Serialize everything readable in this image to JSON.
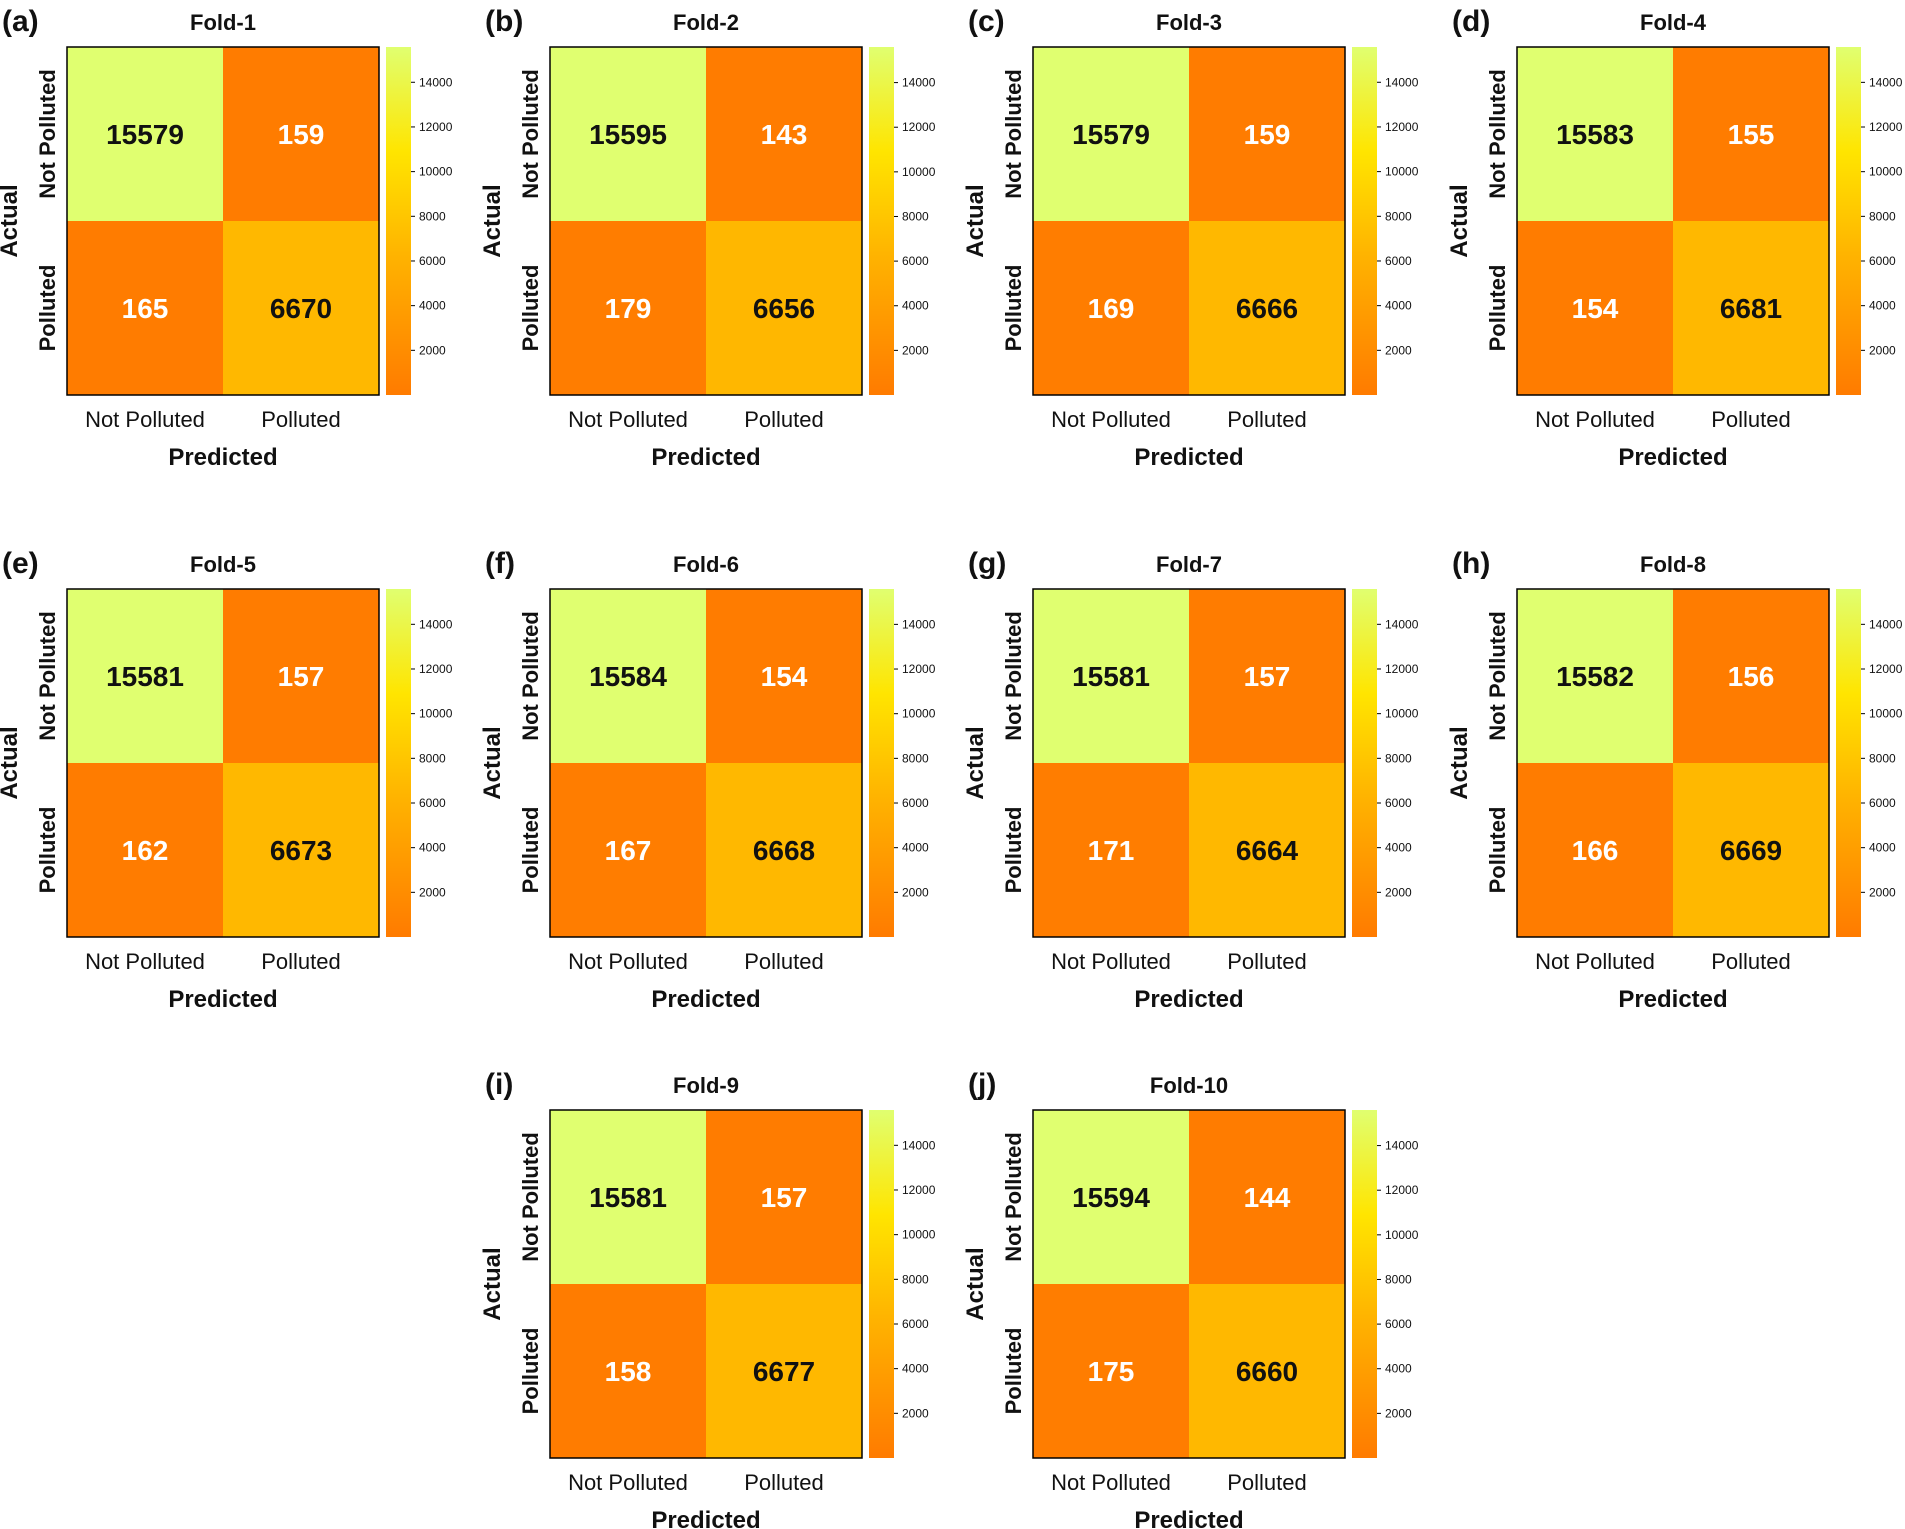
{
  "figure": {
    "row_label": "Actual",
    "col_label": "Predicted",
    "class_labels": [
      "Not Polluted",
      "Polluted"
    ],
    "colormap": {
      "stops": [
        "#ff7b00",
        "#ffb300",
        "#ffe500",
        "#e0ff70"
      ],
      "text_dark": "#111111",
      "text_light": "#ffffff"
    }
  },
  "chart_data": [
    {
      "type": "heatmap",
      "panel_label": "(a)",
      "title": "Fold-1",
      "xlabel": "Predicted",
      "ylabel": "Actual",
      "x_categories": [
        "Not Polluted",
        "Polluted"
      ],
      "y_categories": [
        "Not Polluted",
        "Polluted"
      ],
      "values": [
        [
          15579,
          159
        ],
        [
          165,
          6670
        ]
      ],
      "colorbar": {
        "ticks": [
          2000,
          4000,
          6000,
          8000,
          10000,
          12000,
          14000
        ],
        "range": [
          0,
          15579
        ]
      }
    },
    {
      "type": "heatmap",
      "panel_label": "(b)",
      "title": "Fold-2",
      "xlabel": "Predicted",
      "ylabel": "Actual",
      "x_categories": [
        "Not Polluted",
        "Polluted"
      ],
      "y_categories": [
        "Not Polluted",
        "Polluted"
      ],
      "values": [
        [
          15595,
          143
        ],
        [
          179,
          6656
        ]
      ],
      "colorbar": {
        "ticks": [
          2000,
          4000,
          6000,
          8000,
          10000,
          12000,
          14000
        ],
        "range": [
          0,
          15595
        ]
      }
    },
    {
      "type": "heatmap",
      "panel_label": "(c)",
      "title": "Fold-3",
      "xlabel": "Predicted",
      "ylabel": "Actual",
      "x_categories": [
        "Not Polluted",
        "Polluted"
      ],
      "y_categories": [
        "Not Polluted",
        "Polluted"
      ],
      "values": [
        [
          15579,
          159
        ],
        [
          169,
          6666
        ]
      ],
      "colorbar": {
        "ticks": [
          2000,
          4000,
          6000,
          8000,
          10000,
          12000,
          14000
        ],
        "range": [
          0,
          15579
        ]
      }
    },
    {
      "type": "heatmap",
      "panel_label": "(d)",
      "title": "Fold-4",
      "xlabel": "Predicted",
      "ylabel": "Actual",
      "x_categories": [
        "Not Polluted",
        "Polluted"
      ],
      "y_categories": [
        "Not Polluted",
        "Polluted"
      ],
      "values": [
        [
          15583,
          155
        ],
        [
          154,
          6681
        ]
      ],
      "colorbar": {
        "ticks": [
          2000,
          4000,
          6000,
          8000,
          10000,
          12000,
          14000
        ],
        "range": [
          0,
          15583
        ]
      }
    },
    {
      "type": "heatmap",
      "panel_label": "(e)",
      "title": "Fold-5",
      "xlabel": "Predicted",
      "ylabel": "Actual",
      "x_categories": [
        "Not Polluted",
        "Polluted"
      ],
      "y_categories": [
        "Not Polluted",
        "Polluted"
      ],
      "values": [
        [
          15581,
          157
        ],
        [
          162,
          6673
        ]
      ],
      "colorbar": {
        "ticks": [
          2000,
          4000,
          6000,
          8000,
          10000,
          12000,
          14000
        ],
        "range": [
          0,
          15581
        ]
      }
    },
    {
      "type": "heatmap",
      "panel_label": "(f)",
      "title": "Fold-6",
      "xlabel": "Predicted",
      "ylabel": "Actual",
      "x_categories": [
        "Not Polluted",
        "Polluted"
      ],
      "y_categories": [
        "Not Polluted",
        "Polluted"
      ],
      "values": [
        [
          15584,
          154
        ],
        [
          167,
          6668
        ]
      ],
      "colorbar": {
        "ticks": [
          2000,
          4000,
          6000,
          8000,
          10000,
          12000,
          14000
        ],
        "range": [
          0,
          15584
        ]
      }
    },
    {
      "type": "heatmap",
      "panel_label": "(g)",
      "title": "Fold-7",
      "xlabel": "Predicted",
      "ylabel": "Actual",
      "x_categories": [
        "Not Polluted",
        "Polluted"
      ],
      "y_categories": [
        "Not Polluted",
        "Polluted"
      ],
      "values": [
        [
          15581,
          157
        ],
        [
          171,
          6664
        ]
      ],
      "colorbar": {
        "ticks": [
          2000,
          4000,
          6000,
          8000,
          10000,
          12000,
          14000
        ],
        "range": [
          0,
          15581
        ]
      }
    },
    {
      "type": "heatmap",
      "panel_label": "(h)",
      "title": "Fold-8",
      "xlabel": "Predicted",
      "ylabel": "Actual",
      "x_categories": [
        "Not Polluted",
        "Polluted"
      ],
      "y_categories": [
        "Not Polluted",
        "Polluted"
      ],
      "values": [
        [
          15582,
          156
        ],
        [
          166,
          6669
        ]
      ],
      "colorbar": {
        "ticks": [
          2000,
          4000,
          6000,
          8000,
          10000,
          12000,
          14000
        ],
        "range": [
          0,
          15582
        ]
      }
    },
    {
      "type": "heatmap",
      "panel_label": "(i)",
      "title": "Fold-9",
      "xlabel": "Predicted",
      "ylabel": "Actual",
      "x_categories": [
        "Not Polluted",
        "Polluted"
      ],
      "y_categories": [
        "Not Polluted",
        "Polluted"
      ],
      "values": [
        [
          15581,
          157
        ],
        [
          158,
          6677
        ]
      ],
      "colorbar": {
        "ticks": [
          2000,
          4000,
          6000,
          8000,
          10000,
          12000,
          14000
        ],
        "range": [
          0,
          15581
        ]
      }
    },
    {
      "type": "heatmap",
      "panel_label": "(j)",
      "title": "Fold-10",
      "xlabel": "Predicted",
      "ylabel": "Actual",
      "x_categories": [
        "Not Polluted",
        "Polluted"
      ],
      "y_categories": [
        "Not Polluted",
        "Polluted"
      ],
      "values": [
        [
          15594,
          144
        ],
        [
          175,
          6660
        ]
      ],
      "colorbar": {
        "ticks": [
          2000,
          4000,
          6000,
          8000,
          10000,
          12000,
          14000
        ],
        "range": [
          0,
          15594
        ]
      }
    }
  ]
}
